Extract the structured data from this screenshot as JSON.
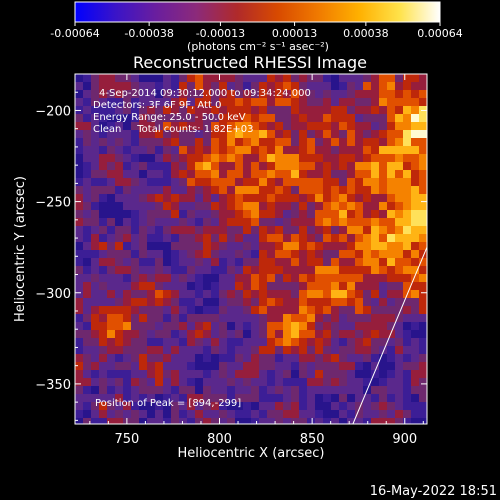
{
  "chart_data": {
    "type": "heatmap",
    "title": "Reconstructed RHESSI Image",
    "xlabel": "Heliocentric X (arcsec)",
    "ylabel": "Heliocentric Y (arcsec)",
    "xlim": [
      722,
      912
    ],
    "ylim": [
      -372,
      -180
    ],
    "x_ticks": [
      750,
      800,
      850,
      900
    ],
    "y_ticks": [
      -200,
      -250,
      -300,
      -350
    ],
    "colorbar": {
      "ticks": [
        "-0.00064",
        "-0.00038",
        "-0.00013",
        "0.00013",
        "0.00038",
        "0.00064"
      ],
      "tick_values": [
        -0.00064,
        -0.00038,
        -0.00013,
        0.00013,
        0.00038,
        0.00064
      ],
      "unit_label": "(photons cm⁻² s⁻¹ asec⁻²)",
      "colors": [
        "#0000ff",
        "#3a14c8",
        "#6a1e9e",
        "#8c2a7a",
        "#b02a2a",
        "#d84a00",
        "#f07a00",
        "#ffb000",
        "#ffe24a",
        "#ffffff"
      ]
    },
    "annotations": {
      "time_range": "4-Sep-2014 09:30:12.000 to 09:34:24.000",
      "detectors": "Detectors: 3F 6F 9F, Att 0",
      "energy": "Energy Range: 25.0 - 50.0 keV",
      "clean": "Clean     Total counts: 1.82E+03",
      "peak": "Position of Peak = [894,-299]"
    },
    "limb_line": [
      [
        872,
        -372
      ],
      [
        912,
        -275
      ]
    ],
    "peak_position": [
      894,
      -299
    ]
  },
  "footer": {
    "date": "16-May-2022 18:51"
  }
}
